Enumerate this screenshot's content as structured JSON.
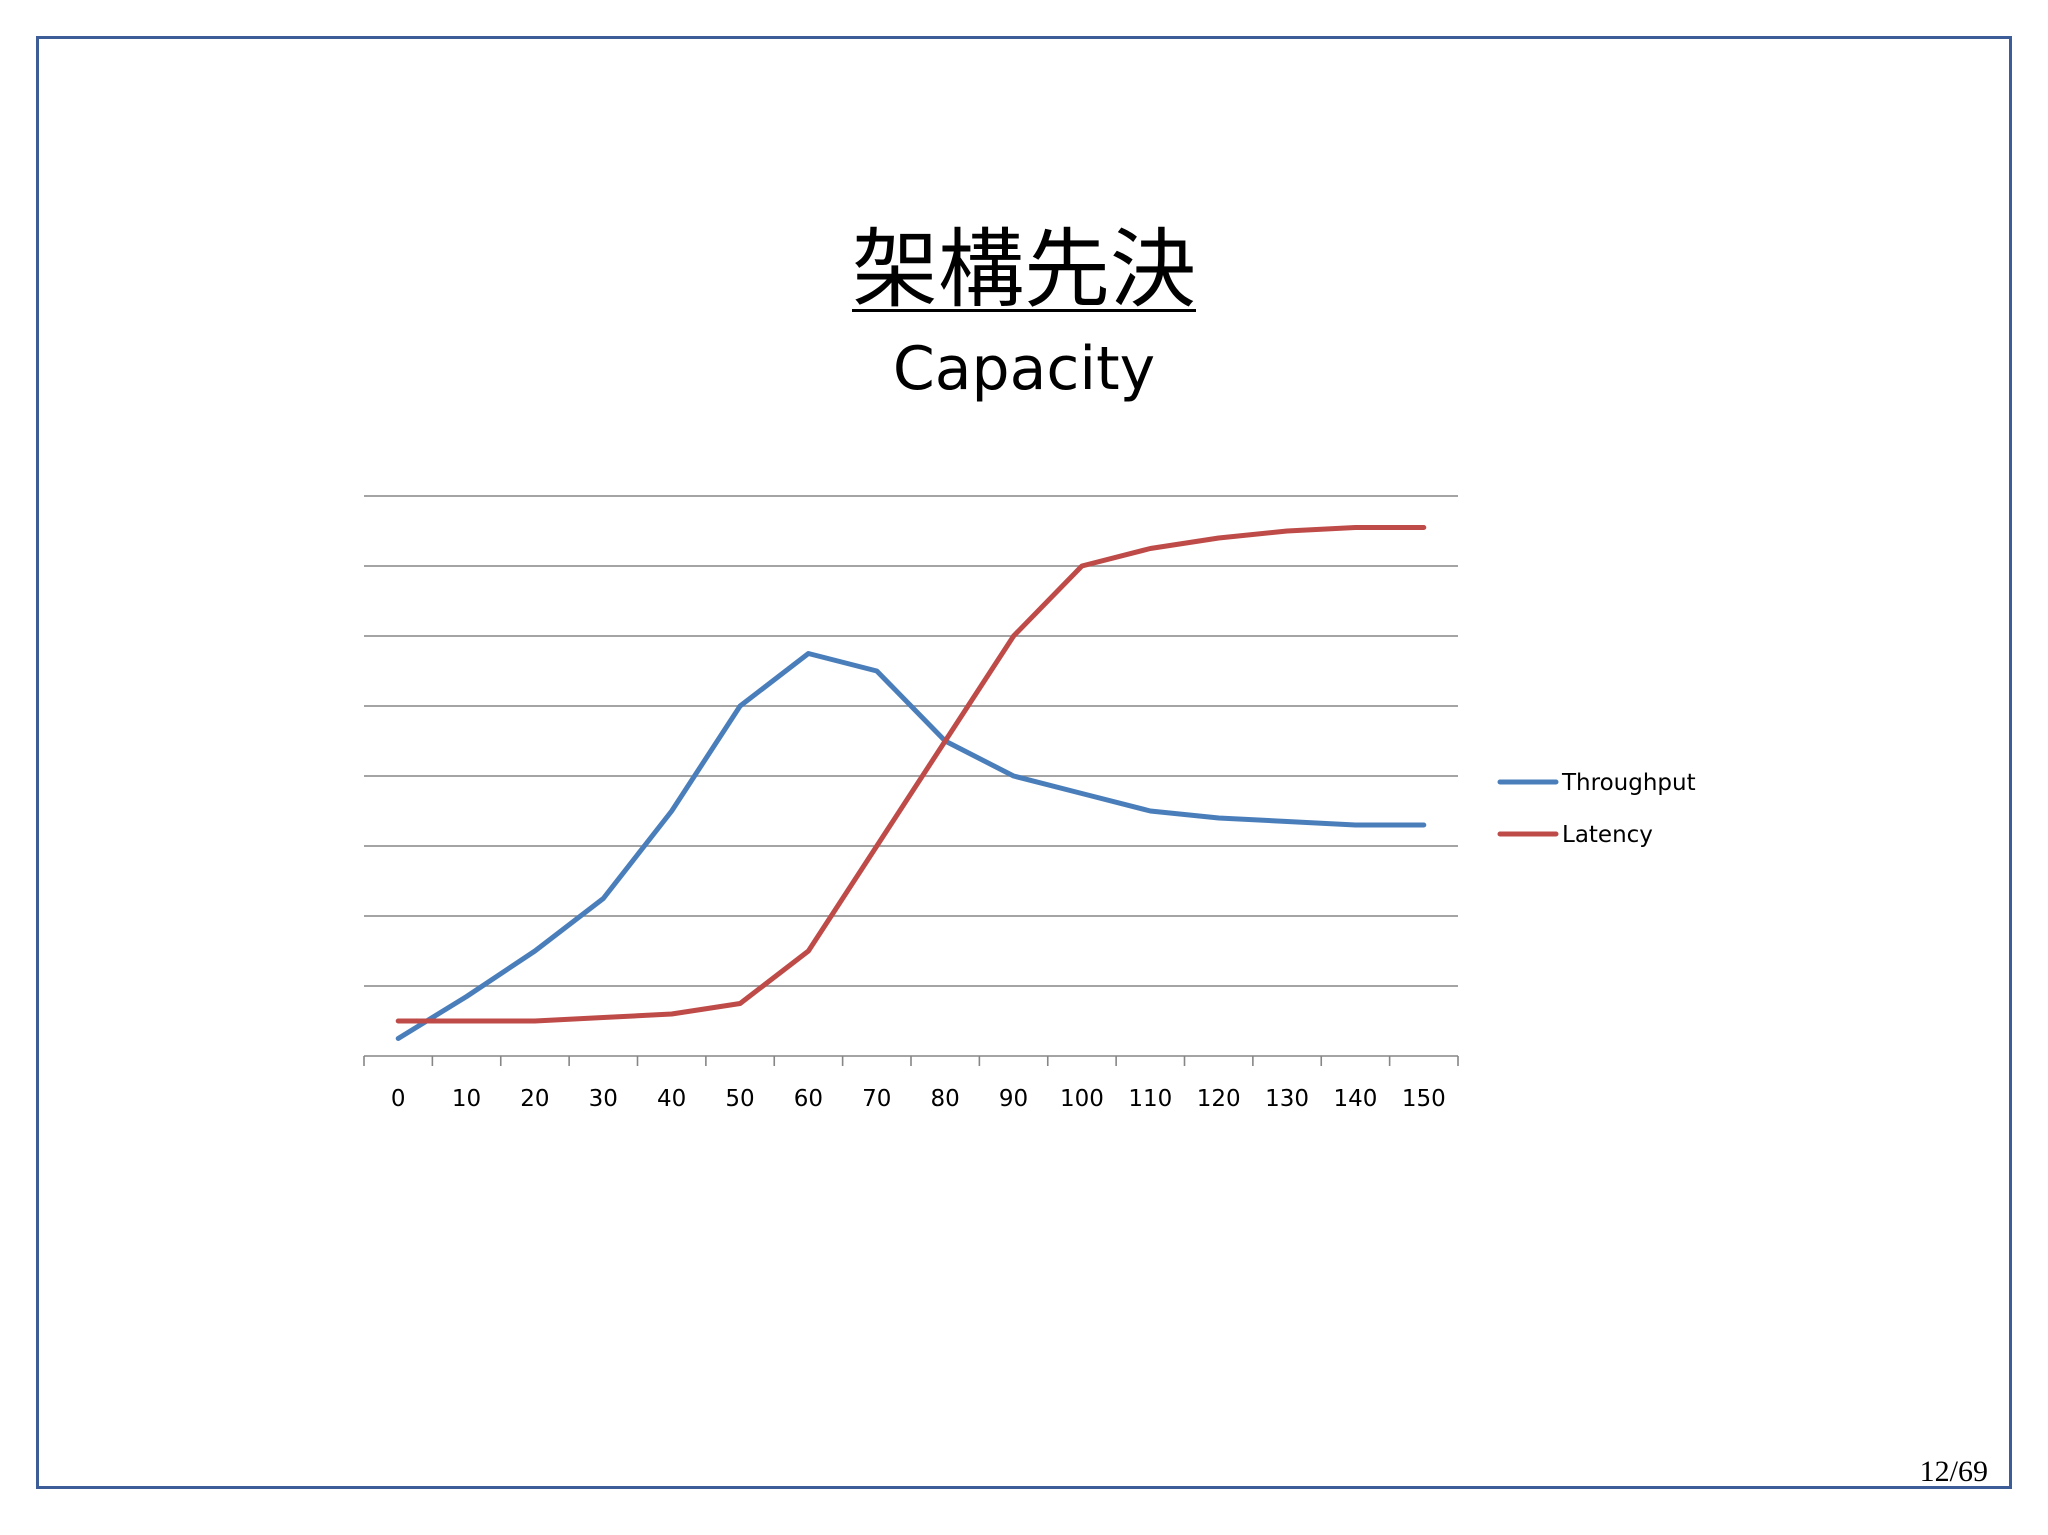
{
  "slide": {
    "title": "架構先決",
    "subtitle": "Capacity",
    "page_number": "12/69"
  },
  "colors": {
    "frame": "#3c5d98",
    "throughput": "#4a7ebb",
    "latency": "#be4b48",
    "gridline": "#868686"
  },
  "chart_data": {
    "type": "line",
    "title": "",
    "xlabel": "",
    "ylabel": "",
    "categories": [
      "0",
      "10",
      "20",
      "30",
      "40",
      "50",
      "60",
      "70",
      "80",
      "90",
      "100",
      "110",
      "120",
      "130",
      "140",
      "150"
    ],
    "ylim": [
      0,
      8
    ],
    "y_tick_labels_shown": false,
    "grid": true,
    "legend_position": "right",
    "series": [
      {
        "name": "Throughput",
        "values": [
          0.25,
          0.85,
          1.5,
          2.25,
          3.5,
          5.0,
          5.75,
          5.5,
          4.5,
          4.0,
          3.75,
          3.5,
          3.4,
          3.35,
          3.3,
          3.3
        ]
      },
      {
        "name": "Latency",
        "values": [
          0.5,
          0.5,
          0.5,
          0.55,
          0.6,
          0.75,
          1.5,
          3.0,
          4.5,
          6.0,
          7.0,
          7.25,
          7.4,
          7.5,
          7.55,
          7.55
        ]
      }
    ]
  }
}
